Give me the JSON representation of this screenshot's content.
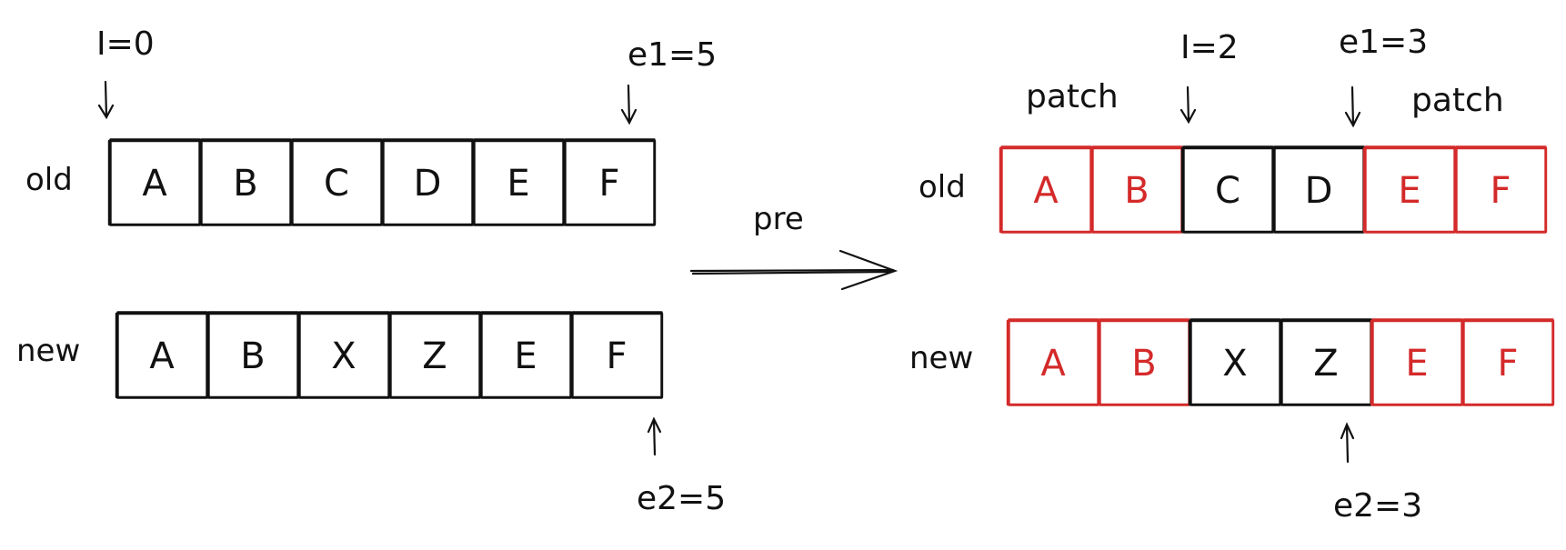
{
  "colors": {
    "ink": "#111111",
    "patched": "#d42a2a"
  },
  "left": {
    "old": {
      "label": "old",
      "cells": [
        {
          "text": "A",
          "patched": false
        },
        {
          "text": "B",
          "patched": false
        },
        {
          "text": "C",
          "patched": false
        },
        {
          "text": "D",
          "patched": false
        },
        {
          "text": "E",
          "patched": false
        },
        {
          "text": "F",
          "patched": false
        }
      ]
    },
    "new": {
      "label": "new",
      "cells": [
        {
          "text": "A",
          "patched": false
        },
        {
          "text": "B",
          "patched": false
        },
        {
          "text": "X",
          "patched": false
        },
        {
          "text": "Z",
          "patched": false
        },
        {
          "text": "E",
          "patched": false
        },
        {
          "text": "F",
          "patched": false
        }
      ]
    },
    "pointers": {
      "i": "I=0",
      "e1": "e1=5",
      "e2": "e2=5"
    }
  },
  "transition": {
    "label": "pre"
  },
  "right": {
    "old": {
      "label": "old",
      "cells": [
        {
          "text": "A",
          "patched": true
        },
        {
          "text": "B",
          "patched": true
        },
        {
          "text": "C",
          "patched": false
        },
        {
          "text": "D",
          "patched": false
        },
        {
          "text": "E",
          "patched": true
        },
        {
          "text": "F",
          "patched": true
        }
      ]
    },
    "new": {
      "label": "new",
      "cells": [
        {
          "text": "A",
          "patched": true
        },
        {
          "text": "B",
          "patched": true
        },
        {
          "text": "X",
          "patched": false
        },
        {
          "text": "Z",
          "patched": false
        },
        {
          "text": "E",
          "patched": true
        },
        {
          "text": "F",
          "patched": true
        }
      ]
    },
    "pointers": {
      "i": "I=2",
      "e1": "e1=3",
      "e2": "e2=3"
    },
    "patch_labels": {
      "left": "patch",
      "right": "patch"
    }
  }
}
